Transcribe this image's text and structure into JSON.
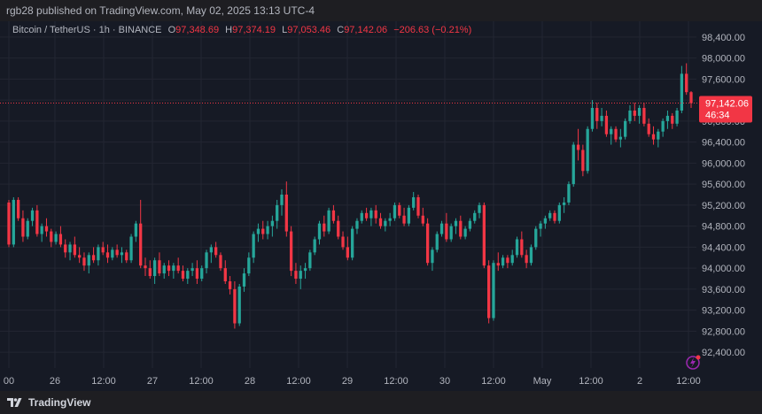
{
  "header": {
    "published_text": "rgb28 published on TradingView.com, May 02, 2025 13:13 UTC-4"
  },
  "symbol": {
    "name": "Bitcoin / TetherUS · 1h · BINANCE",
    "open_label": "O",
    "open": "97,348.69",
    "high_label": "H",
    "high": "97,374.19",
    "low_label": "L",
    "low": "97,053.46",
    "close_label": "C",
    "close": "97,142.06",
    "change": "−206.63 (−0.21%)"
  },
  "price_tag": {
    "price": "97,142.06",
    "countdown": "46:34"
  },
  "footer": {
    "brand": "TradingView"
  },
  "colors": {
    "up": "#26a69a",
    "down": "#f23645",
    "background": "#161a25",
    "axis_text": "#b2b5be",
    "grid": "#232632"
  },
  "icons": {
    "lightning": "lightning-icon",
    "logo": "tradingview-logo-icon"
  },
  "chart_data": {
    "type": "candlestick",
    "y_ticks": [
      "98,400.00",
      "98,000.00",
      "97,600.00",
      "97,200.00",
      "96,800.00",
      "96,400.00",
      "96,000.00",
      "95,600.00",
      "95,200.00",
      "94,800.00",
      "94,400.00",
      "94,000.00",
      "93,600.00",
      "93,200.00",
      "92,800.00",
      "92,400.00"
    ],
    "x_ticks": [
      "00",
      "26",
      "12:00",
      "27",
      "12:00",
      "28",
      "12:00",
      "29",
      "12:00",
      "30",
      "12:00",
      "May",
      "12:00",
      "2",
      "12:00"
    ],
    "ylim": [
      92100,
      98700
    ],
    "grid": true,
    "candles": [
      [
        95250,
        95300,
        94400,
        94450
      ],
      [
        94450,
        95350,
        94400,
        95300
      ],
      [
        95300,
        95350,
        94900,
        94950
      ],
      [
        94950,
        95100,
        94500,
        94600
      ],
      [
        94600,
        94950,
        94550,
        94900
      ],
      [
        94900,
        95150,
        94800,
        95100
      ],
      [
        95100,
        95200,
        94600,
        94650
      ],
      [
        94650,
        94850,
        94500,
        94800
      ],
      [
        94800,
        94950,
        94600,
        94700
      ],
      [
        94700,
        94750,
        94400,
        94500
      ],
      [
        94500,
        94700,
        94450,
        94650
      ],
      [
        94650,
        94800,
        94400,
        94450
      ],
      [
        94450,
        94550,
        94200,
        94300
      ],
      [
        94300,
        94500,
        94150,
        94450
      ],
      [
        94450,
        94600,
        94200,
        94250
      ],
      [
        94250,
        94400,
        94100,
        94200
      ],
      [
        94200,
        94300,
        93950,
        94050
      ],
      [
        94050,
        94300,
        93900,
        94250
      ],
      [
        94250,
        94400,
        94100,
        94150
      ],
      [
        94150,
        94450,
        94050,
        94400
      ],
      [
        94400,
        94500,
        94250,
        94300
      ],
      [
        94300,
        94450,
        94100,
        94200
      ],
      [
        94200,
        94400,
        94150,
        94350
      ],
      [
        94350,
        94450,
        94200,
        94250
      ],
      [
        94250,
        94400,
        94100,
        94300
      ],
      [
        94300,
        94350,
        94100,
        94150
      ],
      [
        94150,
        94650,
        94100,
        94600
      ],
      [
        94600,
        94900,
        94500,
        94850
      ],
      [
        94850,
        95300,
        94000,
        94050
      ],
      [
        94050,
        94200,
        93850,
        94000
      ],
      [
        94000,
        94150,
        93800,
        93850
      ],
      [
        93850,
        94200,
        93700,
        94150
      ],
      [
        94150,
        94300,
        93850,
        93900
      ],
      [
        93900,
        94100,
        93800,
        94050
      ],
      [
        94050,
        94150,
        93850,
        93950
      ],
      [
        93950,
        94100,
        93800,
        94050
      ],
      [
        94050,
        94200,
        93900,
        93950
      ],
      [
        93950,
        94050,
        93750,
        93800
      ],
      [
        93800,
        94000,
        93700,
        93950
      ],
      [
        93950,
        94100,
        93850,
        94000
      ],
      [
        94000,
        94150,
        93700,
        93800
      ],
      [
        93800,
        94050,
        93750,
        94000
      ],
      [
        94000,
        94350,
        93900,
        94300
      ],
      [
        94300,
        94450,
        94100,
        94400
      ],
      [
        94400,
        94500,
        94200,
        94250
      ],
      [
        94250,
        94300,
        93950,
        94000
      ],
      [
        94000,
        94150,
        93700,
        93750
      ],
      [
        93750,
        93850,
        93500,
        93600
      ],
      [
        93600,
        93750,
        92850,
        92950
      ],
      [
        92950,
        93700,
        92900,
        93650
      ],
      [
        93650,
        94000,
        93550,
        93900
      ],
      [
        93900,
        94300,
        93850,
        94200
      ],
      [
        94200,
        94700,
        94100,
        94650
      ],
      [
        94650,
        94850,
        94500,
        94750
      ],
      [
        94750,
        94900,
        94550,
        94650
      ],
      [
        94650,
        94900,
        94550,
        94800
      ],
      [
        94800,
        95000,
        94600,
        94900
      ],
      [
        94900,
        95300,
        94750,
        95200
      ],
      [
        95200,
        95500,
        95000,
        95400
      ],
      [
        95400,
        95650,
        94600,
        94700
      ],
      [
        94700,
        94800,
        93850,
        93950
      ],
      [
        93950,
        94100,
        93700,
        93800
      ],
      [
        93800,
        94050,
        93600,
        93950
      ],
      [
        93950,
        94100,
        93800,
        94000
      ],
      [
        94000,
        94350,
        93950,
        94300
      ],
      [
        94300,
        94600,
        94250,
        94550
      ],
      [
        94550,
        94900,
        94450,
        94850
      ],
      [
        94850,
        95000,
        94600,
        94700
      ],
      [
        94700,
        95150,
        94650,
        95100
      ],
      [
        95100,
        95200,
        94850,
        94900
      ],
      [
        94900,
        95000,
        94550,
        94600
      ],
      [
        94600,
        94700,
        94350,
        94400
      ],
      [
        94400,
        94600,
        94150,
        94200
      ],
      [
        94200,
        94800,
        94150,
        94750
      ],
      [
        94750,
        94950,
        94650,
        94900
      ],
      [
        94900,
        95100,
        94850,
        95050
      ],
      [
        95050,
        95150,
        94900,
        94950
      ],
      [
        94950,
        95150,
        94800,
        95100
      ],
      [
        95100,
        95200,
        94850,
        94950
      ],
      [
        94950,
        95050,
        94750,
        94800
      ],
      [
        94800,
        94950,
        94700,
        94900
      ],
      [
        94900,
        95050,
        94800,
        94950
      ],
      [
        94950,
        95250,
        94900,
        95200
      ],
      [
        95200,
        95250,
        94950,
        95000
      ],
      [
        95000,
        95150,
        94800,
        94850
      ],
      [
        94850,
        95200,
        94800,
        95150
      ],
      [
        95150,
        95450,
        95100,
        95350
      ],
      [
        95350,
        95400,
        94950,
        95000
      ],
      [
        95000,
        95150,
        94800,
        94850
      ],
      [
        94850,
        94950,
        94050,
        94100
      ],
      [
        94100,
        94400,
        93950,
        94350
      ],
      [
        94350,
        94700,
        94300,
        94650
      ],
      [
        94650,
        94900,
        94600,
        94850
      ],
      [
        94850,
        95050,
        94500,
        94550
      ],
      [
        94550,
        94850,
        94500,
        94800
      ],
      [
        94800,
        94950,
        94650,
        94900
      ],
      [
        94900,
        95000,
        94550,
        94600
      ],
      [
        94600,
        94800,
        94550,
        94750
      ],
      [
        94750,
        94950,
        94700,
        94900
      ],
      [
        94900,
        95100,
        94850,
        95050
      ],
      [
        95050,
        95250,
        94950,
        95200
      ],
      [
        95200,
        95250,
        94000,
        94050
      ],
      [
        94050,
        94150,
        92950,
        93050
      ],
      [
        93050,
        94150,
        93000,
        94100
      ],
      [
        94100,
        94300,
        93950,
        94050
      ],
      [
        94050,
        94250,
        94000,
        94200
      ],
      [
        94200,
        94250,
        94000,
        94100
      ],
      [
        94100,
        94350,
        94050,
        94250
      ],
      [
        94250,
        94600,
        94200,
        94550
      ],
      [
        94550,
        94700,
        94200,
        94250
      ],
      [
        94250,
        94350,
        94000,
        94100
      ],
      [
        94100,
        94450,
        94050,
        94400
      ],
      [
        94400,
        94800,
        94350,
        94750
      ],
      [
        94750,
        94900,
        94600,
        94850
      ],
      [
        94850,
        95000,
        94750,
        94950
      ],
      [
        94950,
        95100,
        94900,
        95050
      ],
      [
        95050,
        95100,
        94850,
        94900
      ],
      [
        94900,
        95250,
        94850,
        95200
      ],
      [
        95200,
        95350,
        95050,
        95250
      ],
      [
        95250,
        95650,
        95200,
        95600
      ],
      [
        95600,
        96400,
        95550,
        96350
      ],
      [
        96350,
        96650,
        96050,
        96250
      ],
      [
        96250,
        96350,
        95750,
        95850
      ],
      [
        95850,
        96700,
        95800,
        96650
      ],
      [
        96650,
        97200,
        96600,
        97050
      ],
      [
        97050,
        97150,
        96650,
        96800
      ],
      [
        96800,
        97050,
        96700,
        96900
      ],
      [
        96900,
        97000,
        96500,
        96550
      ],
      [
        96550,
        96700,
        96350,
        96650
      ],
      [
        96650,
        96700,
        96400,
        96450
      ],
      [
        96450,
        96650,
        96300,
        96500
      ],
      [
        96500,
        96850,
        96450,
        96800
      ],
      [
        96800,
        97100,
        96750,
        97000
      ],
      [
        97000,
        97150,
        96800,
        96900
      ],
      [
        96900,
        97100,
        96750,
        97050
      ],
      [
        97050,
        97150,
        96700,
        96750
      ],
      [
        96750,
        96850,
        96500,
        96550
      ],
      [
        96550,
        96700,
        96350,
        96450
      ],
      [
        96450,
        96650,
        96300,
        96600
      ],
      [
        96600,
        96850,
        96500,
        96800
      ],
      [
        96800,
        97000,
        96650,
        96900
      ],
      [
        96900,
        96950,
        96650,
        96750
      ],
      [
        96750,
        97050,
        96700,
        97000
      ],
      [
        97000,
        97850,
        96950,
        97700
      ],
      [
        97700,
        97900,
        97300,
        97350
      ],
      [
        97350,
        97370,
        97050,
        97142
      ]
    ]
  }
}
